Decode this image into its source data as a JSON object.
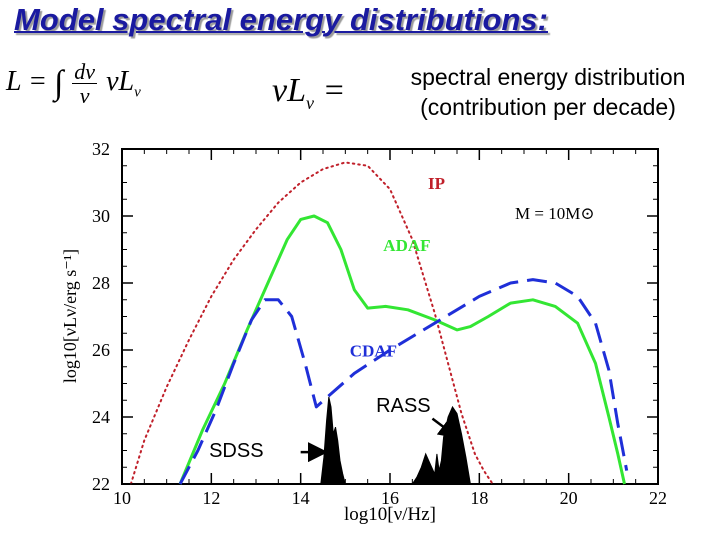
{
  "slide": {
    "title": "Model spectral energy distributions:",
    "eq_left": {
      "lhs": "L =",
      "integral": "∫",
      "frac_num": "dν",
      "frac_den": "ν",
      "rhs": "νL",
      "rhs_sub": "ν"
    },
    "eq_right": {
      "lhs": "νL",
      "lhs_sub": "ν",
      "op": " ="
    },
    "eq_desc_line1": "spectral energy distribution",
    "eq_desc_line2": "(contribution per decade)"
  },
  "colors": {
    "title": "#1a1aa0",
    "ip": "#c0202a",
    "adaf": "#33e633",
    "cdaf": "#1f2fd8",
    "observed": "#000000"
  },
  "chart_data": {
    "type": "line",
    "xlabel": "log10[ν/Hz]",
    "ylabel": "log10[νLν/erg s⁻¹]",
    "xlim": [
      10,
      22
    ],
    "ylim": [
      22,
      32
    ],
    "xticks": [
      "10",
      "12",
      "14",
      "16",
      "18",
      "20",
      "22"
    ],
    "yticks": [
      "22",
      "24",
      "26",
      "28",
      "30",
      "32"
    ],
    "annotation": "M = 10M⊙",
    "series": [
      {
        "name": "IP",
        "style": "dotted",
        "x": [
          10.2,
          10.5,
          11,
          11.5,
          12,
          12.5,
          13,
          13.5,
          14,
          14.5,
          15,
          15.5,
          16,
          16.5,
          17,
          17.3,
          17.6,
          17.9,
          18.1,
          18.3
        ],
        "y": [
          22.0,
          23.3,
          24.9,
          26.3,
          27.6,
          28.7,
          29.6,
          30.4,
          31.0,
          31.4,
          31.6,
          31.5,
          30.8,
          29.3,
          27.1,
          25.6,
          24.1,
          22.9,
          22.4,
          22.0
        ]
      },
      {
        "name": "ADAF",
        "style": "solid",
        "x": [
          11.3,
          11.8,
          12.3,
          12.8,
          13.3,
          13.7,
          14.0,
          14.3,
          14.6,
          14.9,
          15.2,
          15.5,
          15.9,
          16.4,
          17.0,
          17.5,
          17.8,
          18.2,
          18.7,
          19.2,
          19.7,
          20.2,
          20.6,
          20.9,
          21.1,
          21.25
        ],
        "y": [
          22.0,
          23.6,
          25.0,
          26.6,
          28.1,
          29.3,
          29.9,
          30.0,
          29.8,
          29.0,
          27.8,
          27.25,
          27.3,
          27.2,
          26.9,
          26.6,
          26.7,
          27.0,
          27.4,
          27.5,
          27.3,
          26.8,
          25.6,
          24.0,
          22.9,
          22.0
        ]
      },
      {
        "name": "CDAF",
        "style": "dashed",
        "x": [
          11.3,
          11.7,
          12.1,
          12.5,
          12.9,
          13.2,
          13.5,
          13.8,
          14.1,
          14.35,
          14.6,
          15.2,
          16.0,
          17.0,
          18.0,
          18.7,
          19.2,
          19.7,
          20.2,
          20.6,
          20.9,
          21.1,
          21.3
        ],
        "y": [
          22.0,
          23.0,
          24.2,
          25.6,
          26.9,
          27.5,
          27.5,
          27.0,
          25.6,
          24.3,
          24.6,
          25.3,
          26.0,
          26.8,
          27.6,
          28.0,
          28.1,
          28.0,
          27.6,
          26.8,
          25.4,
          23.8,
          22.4
        ]
      },
      {
        "name": "SDSS",
        "style": "filled",
        "x": [
          14.45,
          14.52,
          14.58,
          14.63,
          14.68,
          14.73,
          14.78,
          14.83,
          14.88,
          14.94,
          15.0
        ],
        "y": [
          22.0,
          22.8,
          23.9,
          24.6,
          24.3,
          23.5,
          23.7,
          23.3,
          22.7,
          22.3,
          22.0
        ]
      },
      {
        "name": "RASS",
        "style": "filled",
        "x": [
          16.5,
          16.6,
          16.7,
          16.8,
          16.9,
          17.0,
          17.05,
          17.1,
          17.15,
          17.2,
          17.3,
          17.4,
          17.5,
          17.6,
          17.7,
          17.8
        ],
        "y": [
          22.0,
          22.2,
          22.5,
          22.9,
          22.6,
          22.3,
          22.9,
          22.4,
          22.7,
          23.4,
          24.0,
          24.3,
          24.1,
          23.5,
          22.8,
          22.0
        ]
      }
    ],
    "labels": [
      {
        "text": "IP",
        "series": "IP"
      },
      {
        "text": "ADAF",
        "series": "ADAF"
      },
      {
        "text": "CDAF",
        "series": "CDAF"
      }
    ],
    "callouts": [
      {
        "text": "SDSS",
        "target": "SDSS"
      },
      {
        "text": "RASS",
        "target": "RASS"
      }
    ]
  }
}
